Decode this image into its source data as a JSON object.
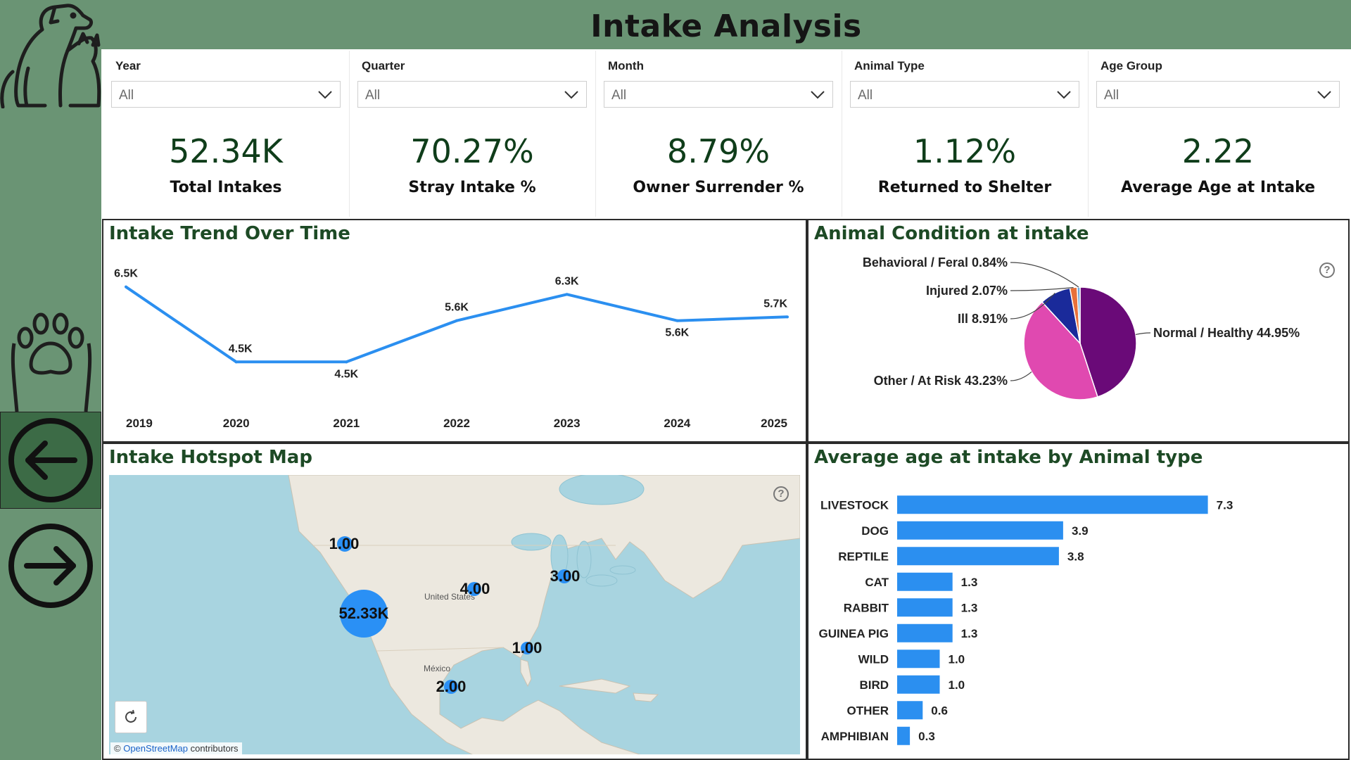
{
  "header": {
    "title": "Intake Analysis"
  },
  "nav": {
    "back_icon": "arrow-left-circle-icon",
    "forward_icon": "arrow-right-circle-icon",
    "logo_icon": "dog-cat-icon",
    "paw_icon": "paw-icon"
  },
  "slicers": [
    {
      "label": "Year",
      "value": "All"
    },
    {
      "label": "Quarter",
      "value": "All"
    },
    {
      "label": "Month",
      "value": "All"
    },
    {
      "label": "Animal Type",
      "value": "All"
    },
    {
      "label": "Age Group",
      "value": "All"
    }
  ],
  "kpis": [
    {
      "value": "52.34K",
      "label": "Total Intakes"
    },
    {
      "value": "70.27%",
      "label": "Stray Intake %"
    },
    {
      "value": "8.79%",
      "label": "Owner Surrender %"
    },
    {
      "value": "1.12%",
      "label": "Returned to Shelter"
    },
    {
      "value": "2.22",
      "label": "Average Age at Intake"
    }
  ],
  "trend": {
    "title": "Intake Trend Over Time",
    "chart_data": {
      "type": "line",
      "x": [
        "2019",
        "2020",
        "2021",
        "2022",
        "2023",
        "2024",
        "2025"
      ],
      "values": [
        6.5,
        4.5,
        4.5,
        5.6,
        6.3,
        5.6,
        5.7
      ],
      "labels": [
        "6.5K",
        "4.5K",
        "4.5K",
        "5.6K",
        "6.3K",
        "5.6K",
        "5.7K"
      ],
      "ylim": [
        4.0,
        7.0
      ],
      "color": "#2b8ff0"
    }
  },
  "condition": {
    "title": "Animal Condition at intake",
    "chart_data": {
      "type": "pie",
      "slices": [
        {
          "label": "Normal / Healthy",
          "value": 44.95,
          "display": "44.95%",
          "color": "#6a0a78"
        },
        {
          "label": "Other / At Risk",
          "value": 43.23,
          "display": "43.23%",
          "color": "#e049b0"
        },
        {
          "label": "Ill",
          "value": 8.91,
          "display": "8.91%",
          "color": "#1a2a9a"
        },
        {
          "label": "Injured",
          "value": 2.07,
          "display": "2.07%",
          "color": "#e8703a"
        },
        {
          "label": "Behavioral / Feral",
          "value": 0.84,
          "display": "0.84%",
          "color": "#6fa8dc"
        }
      ]
    }
  },
  "map": {
    "title": "Intake Hotspot Map",
    "attribution_prefix": "©",
    "attribution_link": "OpenStreetMap",
    "attribution_suffix": "contributors",
    "places": [
      "United States",
      "México"
    ],
    "bubbles": [
      {
        "label": "1.00",
        "size": "small"
      },
      {
        "label": "52.33K",
        "size": "large"
      },
      {
        "label": "4.00",
        "size": "small"
      },
      {
        "label": "3.00",
        "size": "small"
      },
      {
        "label": "1.00",
        "size": "small"
      },
      {
        "label": "2.00",
        "size": "small"
      }
    ]
  },
  "agebar": {
    "title": "Average age at intake by Animal type",
    "chart_data": {
      "type": "bar",
      "orientation": "horizontal",
      "categories": [
        "LIVESTOCK",
        "DOG",
        "REPTILE",
        "CAT",
        "RABBIT",
        "GUINEA PIG",
        "WILD",
        "BIRD",
        "OTHER",
        "AMPHIBIAN"
      ],
      "values": [
        7.3,
        3.9,
        3.8,
        1.3,
        1.3,
        1.3,
        1.0,
        1.0,
        0.6,
        0.3
      ],
      "labels": [
        "7.3",
        "3.9",
        "3.8",
        "1.3",
        "1.3",
        "1.3",
        "1.0",
        "1.0",
        "0.6",
        "0.3"
      ],
      "color": "#2b8ff0"
    }
  }
}
